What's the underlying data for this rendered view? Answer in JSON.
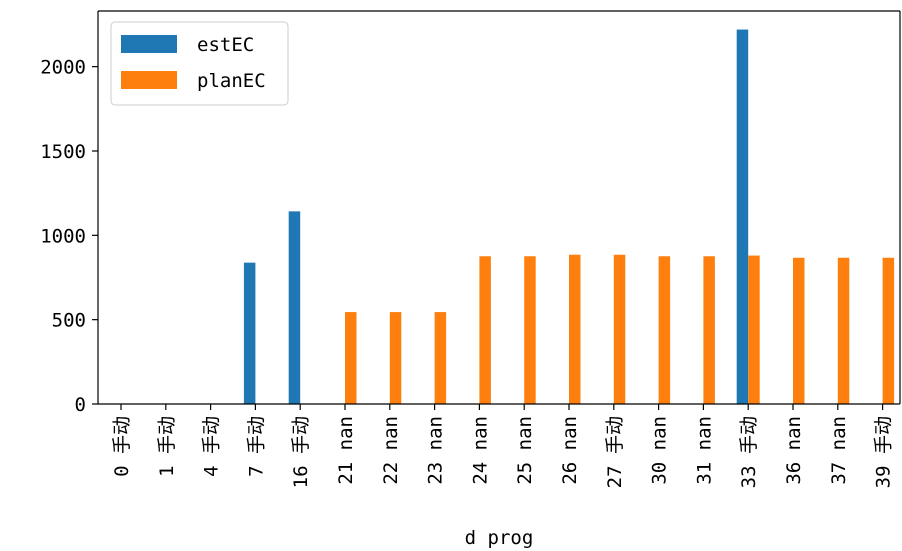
{
  "chart_data": {
    "type": "bar",
    "categories": [
      "0 手动",
      "1 手动",
      "4 手动",
      "7 手动",
      "16 手动",
      "21 nan",
      "22 nan",
      "23 nan",
      "24 nan",
      "25 nan",
      "26 nan",
      "27 手动",
      "30 nan",
      "31 nan",
      "33 手动",
      "36 nan",
      "37 nan",
      "39 手动"
    ],
    "series": [
      {
        "name": "estEC",
        "color": "#1f77b4",
        "values": [
          0,
          0,
          0,
          838,
          1142,
          0,
          0,
          0,
          0,
          0,
          0,
          0,
          0,
          0,
          2220,
          0,
          0,
          0
        ]
      },
      {
        "name": "planEC",
        "color": "#ff7f0e",
        "values": [
          0,
          0,
          0,
          0,
          0,
          545,
          545,
          545,
          876,
          876,
          885,
          885,
          876,
          876,
          880,
          867,
          867,
          867
        ]
      }
    ],
    "xlabel": "d prog",
    "ylabel": "",
    "ylim": [
      0,
      2330
    ],
    "yticks": [
      0,
      500,
      1000,
      1500,
      2000
    ],
    "legend_position": "top-left",
    "grid": false
  }
}
